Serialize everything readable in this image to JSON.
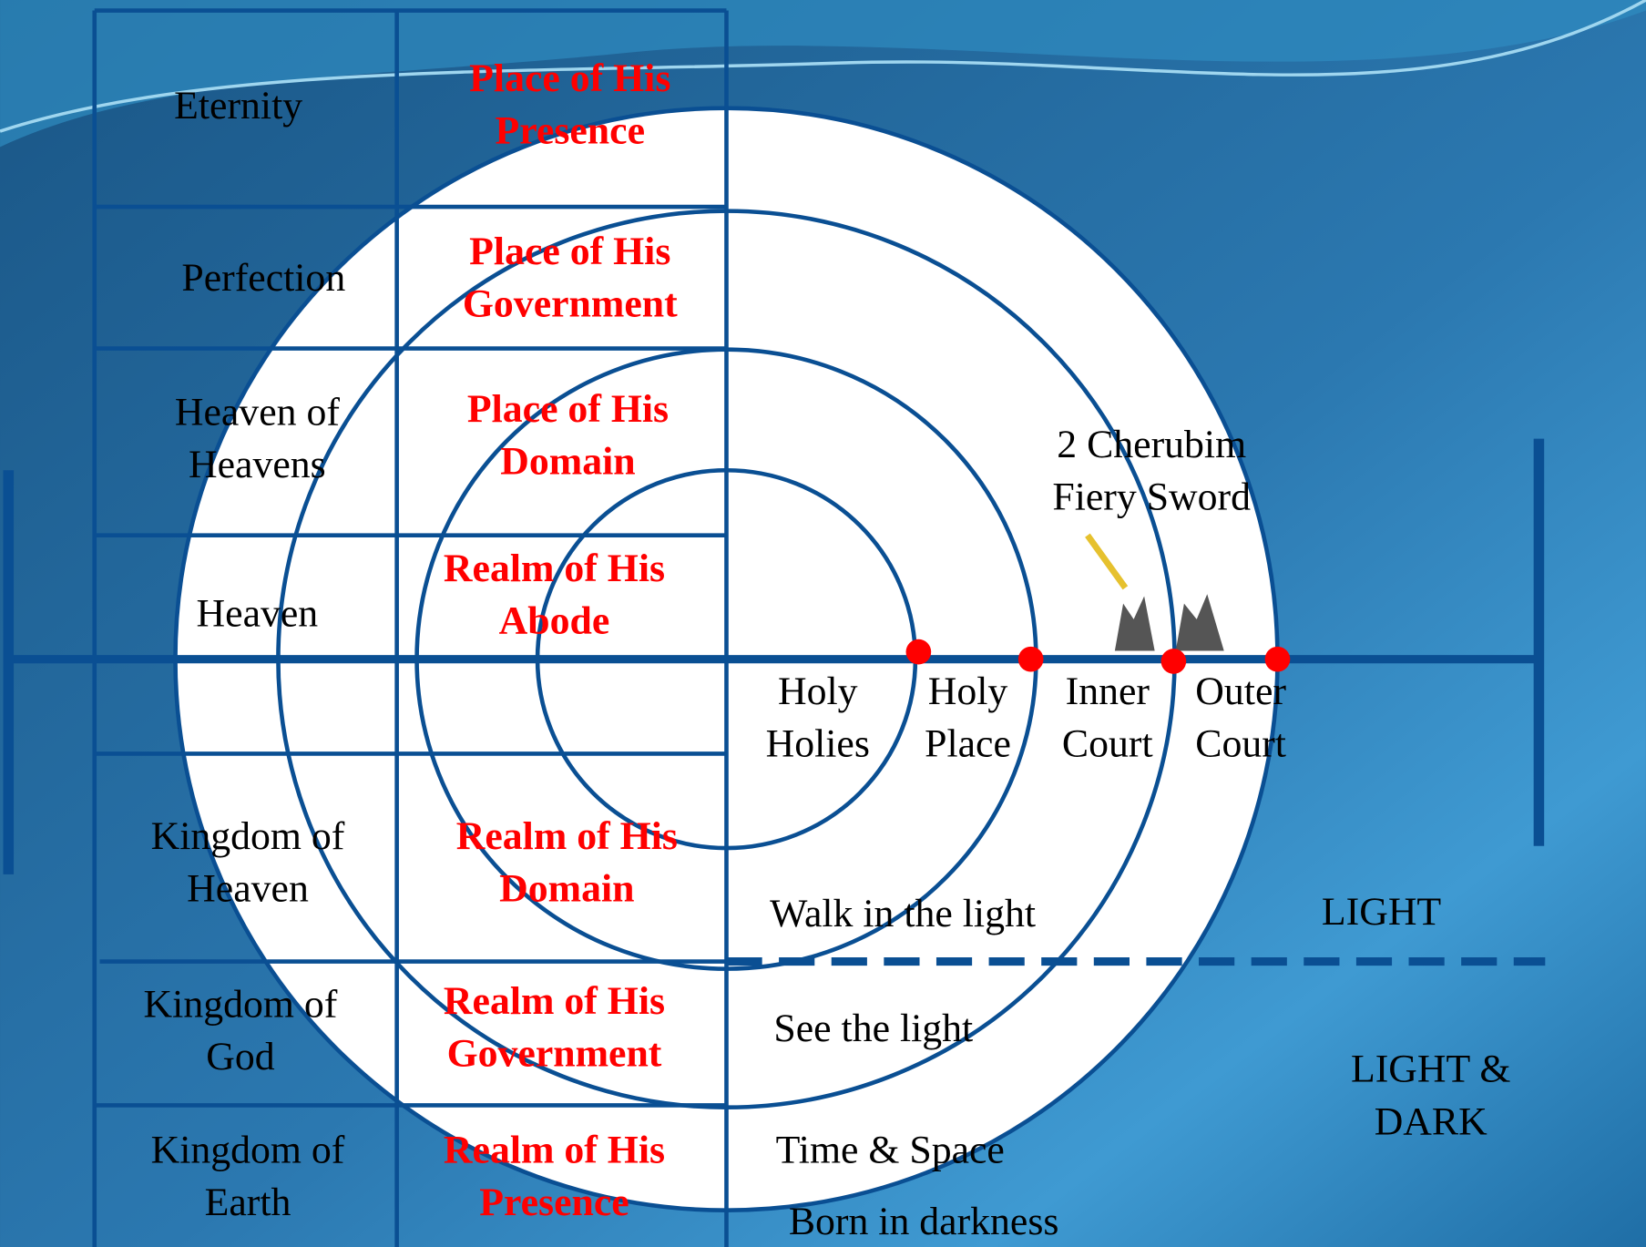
{
  "table": {
    "rows": [
      [
        [
          "Eternity"
        ],
        [
          "Place of His",
          "Presence"
        ]
      ],
      [
        [
          "Perfection"
        ],
        [
          "Place of His",
          "Government"
        ]
      ],
      [
        [
          "Heaven of",
          "Heavens"
        ],
        [
          "Place of His",
          "Domain"
        ]
      ],
      [
        [
          "Heaven"
        ],
        [
          "Realm of His",
          "Abode"
        ]
      ],
      [
        [
          "Kingdom of",
          "Heaven"
        ],
        [
          "Realm of His",
          "Domain"
        ]
      ],
      [
        [
          "Kingdom of",
          "God"
        ],
        [
          "Realm of His",
          "Government"
        ]
      ],
      [
        [
          "Kingdom of",
          "Earth"
        ],
        [
          "Realm of His",
          "Presence"
        ]
      ]
    ]
  },
  "rings": [
    [
      "Holy",
      "Holies"
    ],
    [
      "Holy",
      "Place"
    ],
    [
      "Inner",
      "Court"
    ],
    [
      "Outer",
      "Court"
    ]
  ],
  "guard": [
    "2 Cherubim",
    "Fiery Sword"
  ],
  "walks": [
    "Walk in the light",
    "See the light",
    "Time & Space",
    "Born in darkness"
  ],
  "zones": [
    [
      "LIGHT"
    ],
    [
      "LIGHT &",
      "DARK"
    ]
  ]
}
